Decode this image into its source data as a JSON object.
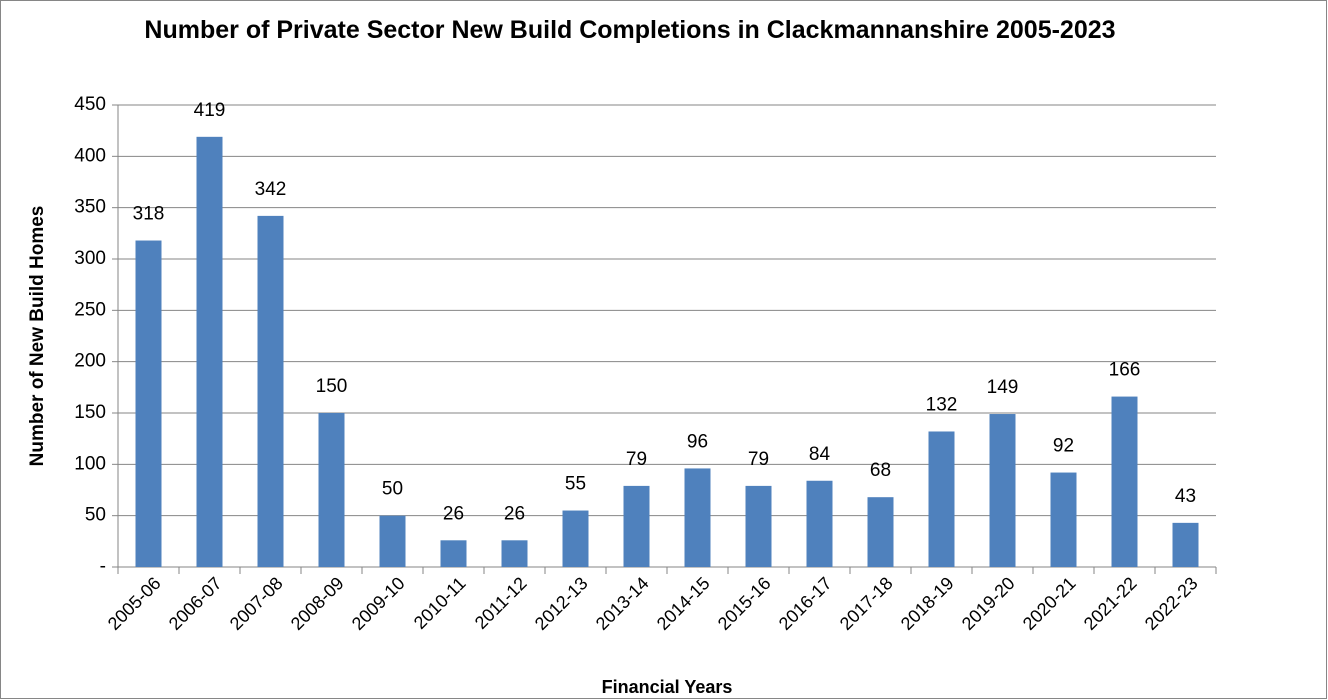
{
  "chart_data": {
    "type": "bar",
    "title": "Number of Private Sector New Build  Completions in Clackmannanshire 2005-2023",
    "x_label": "Financial Years",
    "y_label": "Number of New Build Homes",
    "categories": [
      "2005-06",
      "2006-07",
      "2007-08",
      "2008-09",
      "2009-10",
      "2010-11",
      "2011-12",
      "2012-13",
      "2013-14",
      "2014-15",
      "2015-16",
      "2016-17",
      "2017-18",
      "2018-19",
      "2019-20",
      "2020-21",
      "2021-22",
      "2022-23"
    ],
    "values": [
      318,
      419,
      342,
      150,
      50,
      26,
      26,
      55,
      79,
      96,
      79,
      84,
      68,
      132,
      149,
      92,
      166,
      43
    ],
    "color": "#4f81bd",
    "ylim": [
      0,
      450
    ],
    "yticks": [
      {
        "value": 0,
        "label": "-"
      },
      50,
      100,
      150,
      200,
      250,
      300,
      350,
      400,
      450
    ],
    "grid": true
  }
}
